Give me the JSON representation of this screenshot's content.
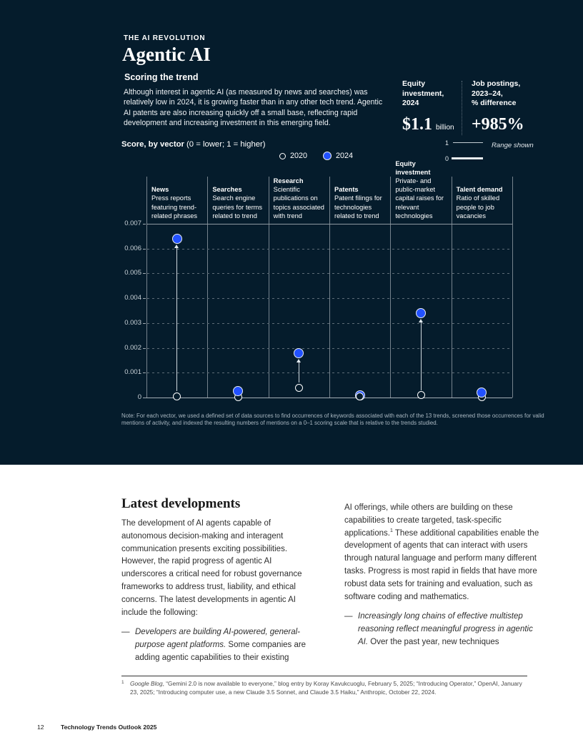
{
  "header": {
    "eyebrow": "THE AI REVOLUTION",
    "title": "Agentic AI"
  },
  "scoring": {
    "heading": "Scoring the trend",
    "paragraph": "Although interest in agentic AI (as measured by news and searches) was relatively low in 2024, it is growing faster than in any other tech trend. Agentic AI patents are also increasing quickly off a small base, reflecting rapid development and increasing investment in this emerging field."
  },
  "stats": [
    {
      "label": "Equity\ninvestment,\n2024",
      "value": "$1.1",
      "unit": "billion"
    },
    {
      "label": "Job postings,\n2023–24,\n% difference",
      "value": "+985%",
      "unit": ""
    }
  ],
  "score_header": {
    "bold": "Score, by vector",
    "rest": " (0 = lower; 1 = higher)"
  },
  "legend": [
    {
      "label": "2020"
    },
    {
      "label": "2024"
    }
  ],
  "range_indicator": {
    "top": "1",
    "bottom": "0",
    "label": "Range shown"
  },
  "chart_data": {
    "type": "scatter",
    "title": "Score, by vector (0 = lower; 1 = higher)",
    "categories": [
      "News",
      "Searches",
      "Research",
      "Patents",
      "Equity investment",
      "Talent demand"
    ],
    "category_descriptions": [
      "Press reports featuring trend-related phrases",
      "Search engine queries for terms related to trend",
      "Scientific publications on topics associated with trend",
      "Patent filings for technologies related to trend",
      "Private- and public-market capital raises for relevant technologies",
      "Ratio of skilled people to job vacancies"
    ],
    "series": [
      {
        "name": "2020",
        "style": "hollow",
        "values": [
          5e-05,
          2e-05,
          0.0004,
          5e-05,
          0.0001,
          2e-05
        ]
      },
      {
        "name": "2024",
        "style": "filled",
        "values": [
          0.0064,
          0.00025,
          0.0018,
          0.0001,
          0.0034,
          0.0002
        ]
      }
    ],
    "ylim": [
      0,
      0.007
    ],
    "yticks": [
      0,
      0.001,
      0.002,
      0.003,
      0.004,
      0.005,
      0.006,
      0.007
    ],
    "grid": "dashed-horizontal",
    "legend_position": "top",
    "hollow_on_top": [
      false,
      false,
      false,
      true,
      false,
      false
    ],
    "colors": {
      "filled": "#2251ff",
      "hollow_stroke": "#ffffff",
      "background": "#051c2c"
    }
  },
  "note": "Note: For each vector, we used a defined set of data sources to find occurrences of keywords associated with each of the 13 trends, screened those occurrences for valid mentions of activity, and indexed the resulting numbers of mentions on a 0–1 scoring scale that is relative to the trends studied.",
  "article": {
    "heading": "Latest developments",
    "bullet_marker": "—",
    "col1_paragraph": "The development of AI agents capable of autonomous decision-making and interagent communication presents exciting possibilities. However, the rapid progress of agentic AI underscores a critical need for robust governance frameworks to address trust, liability, and ethical concerns. The latest developments in agentic AI include the following:",
    "col1_bullet_italic": "Developers are building AI-powered, general-purpose agent platforms.",
    "col1_bullet_rest": " Some companies are adding agentic capabilities to their existing",
    "col2_part1": "AI offerings, while others are building on these capabilities to create targeted, task-specific applications.",
    "footnote_ref": "1",
    "col2_part2": " These additional capabilities enable the development of agents that can interact with users through natural language and perform many different tasks. Progress is most rapid in fields that have more robust data sets for training and evaluation, such as software coding and mathematics.",
    "col2_bullet_italic": "Increasingly long chains of effective multistep reasoning reflect meaningful progress in agentic AI.",
    "col2_bullet_rest": "  Over the past year, new techniques",
    "footnote_italic": "Google Blog",
    "footnote_text": ", “Gemini 2.0 is now available to everyone,” blog entry by Koray Kavukcuoglu, February 5, 2025; “Introducing Operator,” OpenAI, January 23, 2025; “Introducing computer use, a new Claude 3.5 Sonnet, and Claude 3.5 Haiku,” Anthropic, October 22, 2024."
  },
  "footer": {
    "page_number": "12",
    "text": "Technology Trends Outlook 2025"
  }
}
